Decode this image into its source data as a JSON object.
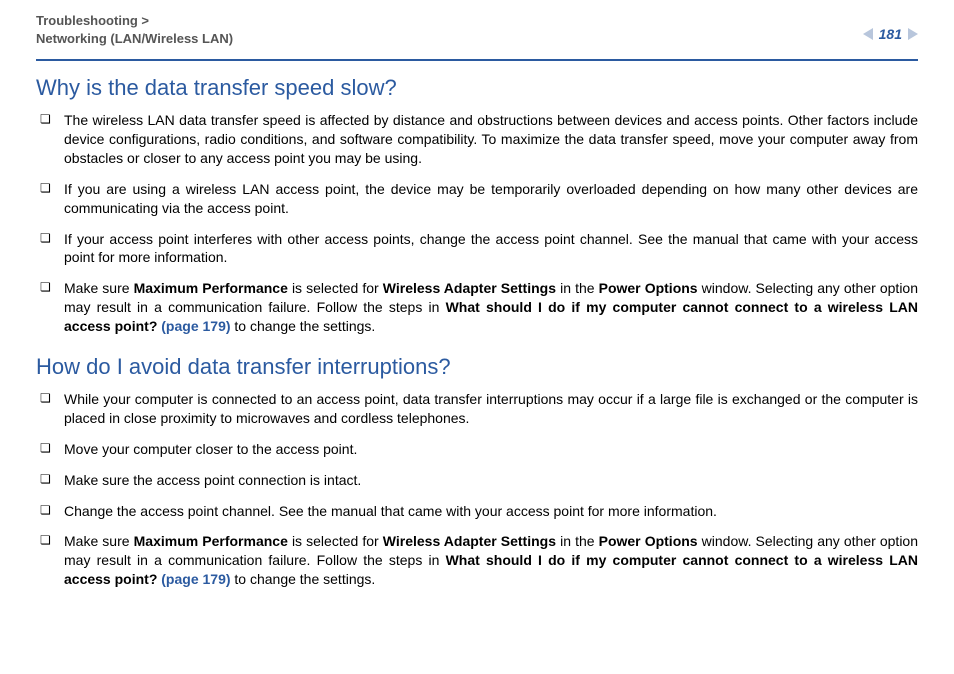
{
  "breadcrumb_line1": "Troubleshooting >",
  "breadcrumb_line2": "Networking (LAN/Wireless LAN)",
  "page_number": "181",
  "colors": {
    "accent": "#2b5aa0",
    "arrow": "#b8c6dc"
  },
  "section1": {
    "title": "Why is the data transfer speed slow?",
    "items": [
      {
        "text": "The wireless LAN data transfer speed is affected by distance and obstructions between devices and access points. Other factors include device configurations, radio conditions, and software compatibility. To maximize the data transfer speed, move your computer away from obstacles or closer to any access point you may be using."
      },
      {
        "text": "If you are using a wireless LAN access point, the device may be temporarily overloaded depending on how many other devices are communicating via the access point."
      },
      {
        "text": "If your access point interferes with other access points, change the access point channel. See the manual that came with your access point for more information."
      },
      {
        "runs": [
          {
            "t": "Make sure "
          },
          {
            "t": "Maximum Performance",
            "b": true
          },
          {
            "t": " is selected for "
          },
          {
            "t": "Wireless Adapter Settings",
            "b": true
          },
          {
            "t": " in the "
          },
          {
            "t": "Power Options",
            "b": true
          },
          {
            "t": " window. Selecting any other option may result in a communication failure. Follow the steps in "
          },
          {
            "t": "What should I do if my computer cannot connect to a wireless LAN access point? ",
            "b": true
          },
          {
            "t": "(page 179)",
            "link": true
          },
          {
            "t": " to change the settings."
          }
        ]
      }
    ]
  },
  "section2": {
    "title": "How do I avoid data transfer interruptions?",
    "items": [
      {
        "text": "While your computer is connected to an access point, data transfer interruptions may occur if a large file is exchanged or the computer is placed in close proximity to microwaves and cordless telephones."
      },
      {
        "text": "Move your computer closer to the access point."
      },
      {
        "text": "Make sure the access point connection is intact."
      },
      {
        "text": "Change the access point channel. See the manual that came with your access point for more information."
      },
      {
        "runs": [
          {
            "t": "Make sure "
          },
          {
            "t": "Maximum Performance",
            "b": true
          },
          {
            "t": " is selected for "
          },
          {
            "t": "Wireless Adapter Settings",
            "b": true
          },
          {
            "t": " in the "
          },
          {
            "t": "Power Options",
            "b": true
          },
          {
            "t": " window. Selecting any other option may result in a communication failure. Follow the steps in "
          },
          {
            "t": "What should I do if my computer cannot connect to a wireless LAN access point? ",
            "b": true
          },
          {
            "t": "(page 179)",
            "link": true
          },
          {
            "t": " to change the settings."
          }
        ]
      }
    ]
  }
}
